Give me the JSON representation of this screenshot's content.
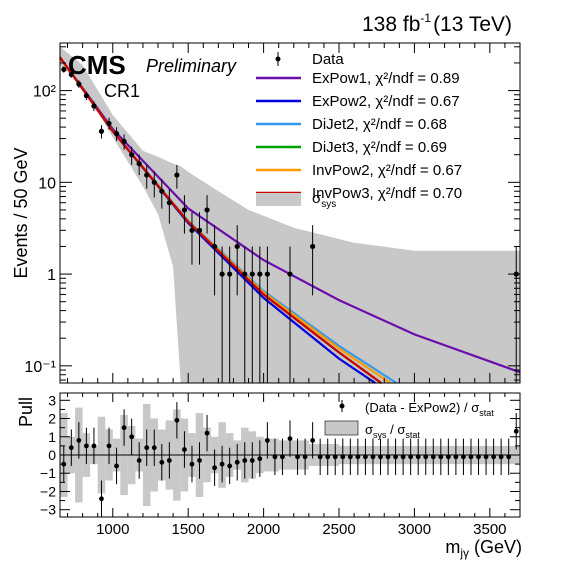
{
  "header": {
    "lumi_value": "138 fb",
    "lumi_exp": "-1",
    "lumi_energy": "(13 TeV)",
    "cms": "CMS",
    "preliminary": "Preliminary",
    "region": "CR1"
  },
  "legend": {
    "data": "Data",
    "sys": "σ",
    "sys_sub": "sys",
    "fits": [
      {
        "name": "ExPow1",
        "chi2": ", χ²/ndf = 0.89",
        "color": "#6a0dad"
      },
      {
        "name": "ExPow2",
        "chi2": ", χ²/ndf = 0.67",
        "color": "#0000e0"
      },
      {
        "name": "DiJet2",
        "chi2": ", χ²/ndf = 0.68",
        "color": "#3399ee"
      },
      {
        "name": "DiJet3",
        "chi2": ", χ²/ndf = 0.69",
        "color": "#00a000"
      },
      {
        "name": "InvPow2",
        "chi2": ", χ²/ndf = 0.67",
        "color": "#ff9900"
      },
      {
        "name": "InvPow3",
        "chi2": ", χ²/ndf = 0.70",
        "color": "#cc0000"
      }
    ]
  },
  "pull_legend": {
    "data": "(Data - ExPow2) / σ",
    "data_sub": "stat",
    "band_a": "σ",
    "band_a_sub": "sys",
    "band_mid": " / σ",
    "band_b_sub": "stat"
  },
  "chart_data": [
    {
      "type": "scatter",
      "title": "",
      "xlabel": "m",
      "xlabel_sub": "jγ",
      "xlabel_unit": " (GeV)",
      "ylabel": "Events / 50 GeV",
      "xlim": [
        650,
        3700
      ],
      "ylim": [
        0.065,
        330
      ],
      "yscale": "log",
      "xticks": [
        1000,
        1500,
        2000,
        2500,
        3000,
        3500
      ],
      "yticks": [
        {
          "v": 0.1,
          "label": "10⁻¹"
        },
        {
          "v": 1,
          "label": "1"
        },
        {
          "v": 10,
          "label": "10"
        },
        {
          "v": 100,
          "label": "10²"
        }
      ],
      "series": [
        {
          "name": "Data",
          "x": [
            675,
            725,
            775,
            825,
            875,
            925,
            975,
            1025,
            1075,
            1125,
            1175,
            1225,
            1275,
            1325,
            1375,
            1425,
            1475,
            1525,
            1575,
            1625,
            1675,
            1725,
            1775,
            1825,
            1875,
            1925,
            1975,
            2025,
            2175,
            2325,
            3675
          ],
          "y": [
            170,
            150,
            118,
            88,
            68,
            36,
            44,
            34,
            28,
            20,
            16,
            12,
            10,
            8,
            6,
            12,
            5,
            3,
            3,
            5,
            2,
            1,
            1,
            2,
            1,
            1,
            1,
            1,
            1,
            2,
            1
          ]
        }
      ],
      "fits": [
        {
          "name": "ExPow1",
          "x": [
            650,
            1000,
            1500,
            2000,
            2500,
            3000,
            3700
          ],
          "y": [
            230,
            38,
            5.2,
            1.42,
            0.52,
            0.22,
            0.085
          ]
        },
        {
          "name": "ExPow2",
          "x": [
            650,
            1000,
            1500,
            2000,
            2500,
            2740
          ],
          "y": [
            230,
            36,
            3.6,
            0.55,
            0.12,
            0.065
          ]
        },
        {
          "name": "DiJet2",
          "x": [
            650,
            1000,
            1500,
            2000,
            2500,
            2880
          ],
          "y": [
            230,
            36,
            3.8,
            0.65,
            0.165,
            0.065
          ]
        },
        {
          "name": "DiJet3",
          "x": [
            650,
            1000,
            1500,
            2000,
            2500,
            2780
          ],
          "y": [
            230,
            36,
            3.7,
            0.6,
            0.14,
            0.065
          ]
        },
        {
          "name": "InvPow2",
          "x": [
            650,
            1000,
            1500,
            2000,
            2500,
            2840
          ],
          "y": [
            230,
            36,
            3.75,
            0.63,
            0.155,
            0.065
          ]
        },
        {
          "name": "InvPow3",
          "x": [
            650,
            1000,
            1500,
            2000,
            2500,
            2780
          ],
          "y": [
            230,
            36,
            3.7,
            0.6,
            0.14,
            0.065
          ]
        }
      ],
      "sys_band": {
        "x": [
          650,
          800,
          1000,
          1200,
          1300,
          1400,
          1450,
          1500,
          1700,
          1900,
          2200,
          2600,
          3000,
          3400,
          3700
        ],
        "lo": [
          190,
          110,
          31,
          9,
          4.5,
          1.2,
          0.065,
          0.065,
          0.065,
          0.065,
          0.065,
          0.065,
          0.065,
          0.065,
          0.065
        ],
        "hi": [
          300,
          190,
          54,
          22,
          19,
          16,
          15,
          13,
          8,
          5,
          3.2,
          2.2,
          1.8,
          1.8,
          1.8
        ]
      }
    },
    {
      "type": "scatter",
      "title": "",
      "xlabel": "",
      "ylabel": "Pull",
      "xlim": [
        650,
        3700
      ],
      "ylim": [
        -3.4,
        3.4
      ],
      "yticks": [
        -3,
        -2,
        -1,
        0,
        1,
        2,
        3
      ],
      "series": [
        {
          "name": "(Data - ExPow2) / σstat",
          "x": [
            675,
            725,
            775,
            825,
            875,
            925,
            975,
            1025,
            1075,
            1125,
            1175,
            1225,
            1275,
            1325,
            1375,
            1425,
            1475,
            1525,
            1575,
            1625,
            1675,
            1725,
            1775,
            1825,
            1875,
            1925,
            1975,
            2025,
            2075,
            2125,
            2175,
            2225,
            2275,
            2325,
            2375,
            2425,
            2475,
            2525,
            2575,
            2625,
            2675,
            2725,
            2775,
            2825,
            2875,
            2925,
            2975,
            3025,
            3075,
            3125,
            3175,
            3225,
            3275,
            3325,
            3375,
            3425,
            3475,
            3525,
            3575,
            3625,
            3675
          ],
          "y": [
            -0.5,
            0.4,
            0.8,
            0.5,
            0.5,
            -2.4,
            0.5,
            -0.6,
            1.5,
            1.0,
            -0.3,
            0.4,
            0.4,
            -0.4,
            -0.3,
            1.9,
            0.3,
            -0.5,
            -0.3,
            1.2,
            -0.7,
            -0.5,
            -0.6,
            -0.4,
            -0.3,
            -0.3,
            -0.2,
            0.8,
            -0.1,
            -0.1,
            0.9,
            -0.1,
            -0.1,
            0.8,
            -0.1,
            -0.1,
            -0.1,
            -0.1,
            -0.1,
            -0.1,
            -0.1,
            -0.1,
            -0.1,
            -0.1,
            -0.1,
            -0.1,
            -0.1,
            -0.1,
            -0.1,
            -0.1,
            -0.1,
            -0.1,
            -0.1,
            -0.1,
            -0.1,
            -0.1,
            -0.1,
            -0.1,
            -0.1,
            -0.1,
            1.3
          ]
        }
      ],
      "sys_stat_band": {
        "x": [
          650,
          700,
          750,
          800,
          850,
          900,
          950,
          1000,
          1050,
          1100,
          1150,
          1200,
          1250,
          1300,
          1350,
          1400,
          1450,
          1500,
          1550,
          1600,
          1650,
          1700,
          1750,
          1800,
          1850,
          1900,
          1950,
          2000,
          2100,
          2300,
          2500,
          3700
        ],
        "half_width": [
          2.3,
          1.0,
          2.6,
          1.2,
          0.5,
          2.1,
          1.4,
          0.9,
          2.2,
          1.6,
          0.9,
          2.8,
          2.0,
          1.4,
          1.9,
          2.5,
          2.0,
          1.2,
          2.3,
          1.5,
          1.0,
          1.8,
          1.2,
          0.8,
          1.5,
          1.3,
          1.0,
          0.9,
          0.8,
          0.6,
          0.5,
          0.5
        ]
      }
    }
  ]
}
